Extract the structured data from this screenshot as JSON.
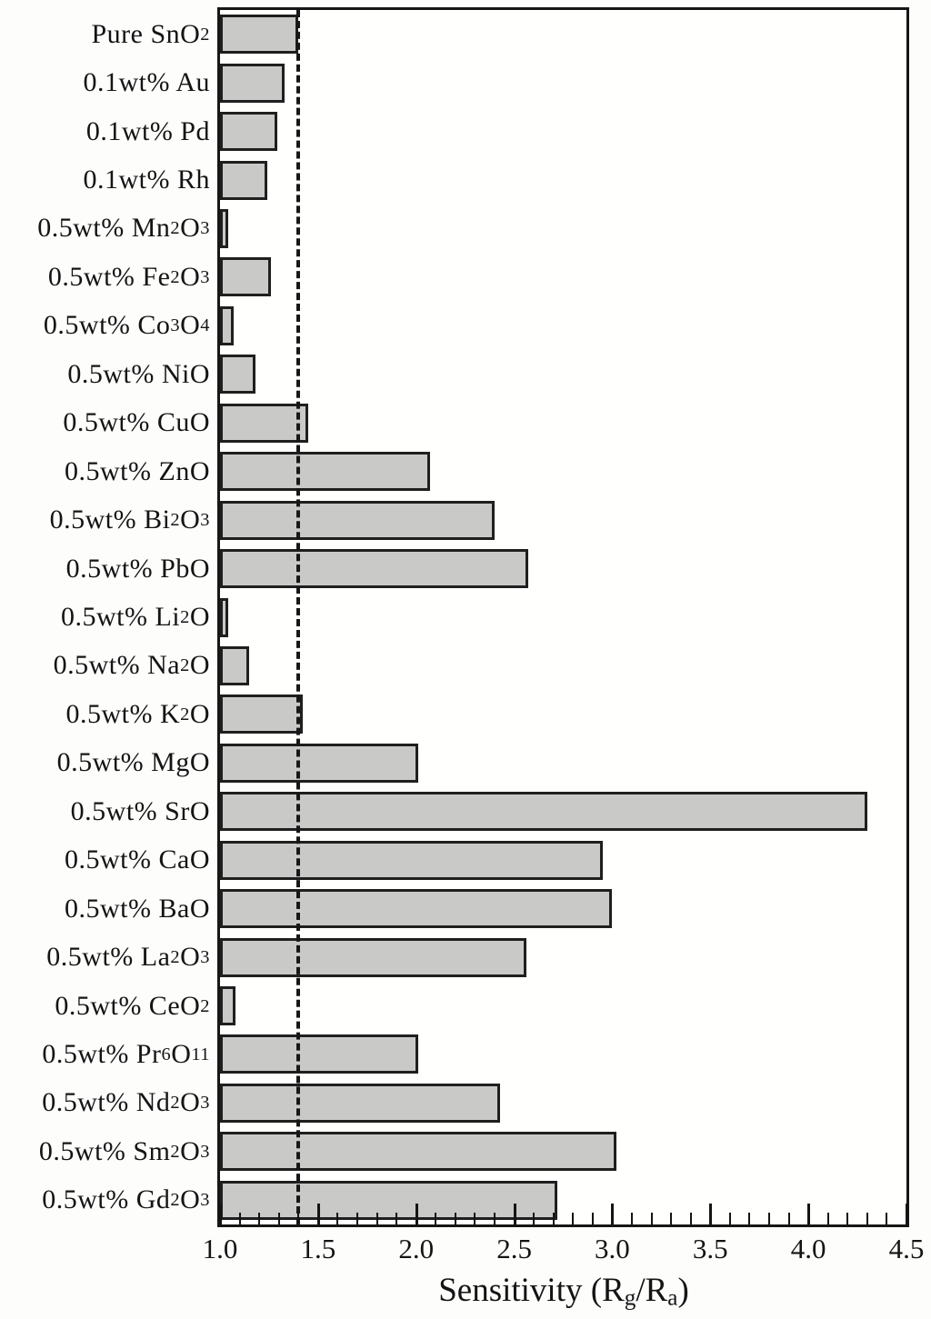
{
  "chart_data": {
    "type": "bar",
    "orientation": "horizontal",
    "xlabel": "Sensitivity (Rg/Ra)",
    "xlabel_segments": [
      "Sensitivity (R",
      "_g",
      "/R",
      "_a",
      ")"
    ],
    "xlim": [
      1.0,
      4.5
    ],
    "x_major_ticks": [
      1.0,
      1.5,
      2.0,
      2.5,
      3.0,
      3.5,
      4.0,
      4.5
    ],
    "x_major_tick_labels": [
      "1.0",
      "1.5",
      "2.0",
      "2.5",
      "3.0",
      "3.5",
      "4.0",
      "4.5"
    ],
    "x_minor_tick_step": 0.1,
    "grid": false,
    "legend": false,
    "reference_line": {
      "value": 1.4,
      "style": "dashed",
      "color": "#171717"
    },
    "bar_color": "#c9cac8",
    "bar_border_color": "#1f1f1f",
    "categories": [
      "Pure SnO2",
      "0.1wt% Au",
      "0.1wt% Pd",
      "0.1wt% Rh",
      "0.5wt% Mn2O3",
      "0.5wt% Fe2O3",
      "0.5wt% Co3O4",
      "0.5wt% NiO",
      "0.5wt% CuO",
      "0.5wt% ZnO",
      "0.5wt% Bi2O3",
      "0.5wt% PbO",
      "0.5wt% Li2O",
      "0.5wt% Na2O",
      "0.5wt% K2O",
      "0.5wt% MgO",
      "0.5wt% SrO",
      "0.5wt% CaO",
      "0.5wt% BaO",
      "0.5wt% La2O3",
      "0.5wt% CeO2",
      "0.5wt% Pr6O11",
      "0.5wt% Nd2O3",
      "0.5wt% Sm2O3",
      "0.5wt% Gd2O3"
    ],
    "category_segments": [
      [
        "Pure SnO",
        "_2"
      ],
      [
        "0.1wt% Au"
      ],
      [
        "0.1wt% Pd"
      ],
      [
        "0.1wt% Rh"
      ],
      [
        "0.5wt% Mn",
        "_2",
        "O",
        "_3"
      ],
      [
        "0.5wt% Fe",
        "_2",
        "O",
        "_3"
      ],
      [
        "0.5wt% Co",
        "_3",
        "O",
        "_4"
      ],
      [
        "0.5wt% NiO"
      ],
      [
        "0.5wt% CuO"
      ],
      [
        "0.5wt% ZnO"
      ],
      [
        "0.5wt% Bi",
        "_2",
        "O",
        "_3"
      ],
      [
        "0.5wt% PbO"
      ],
      [
        "0.5wt% Li",
        "_2",
        "O"
      ],
      [
        "0.5wt% Na",
        "_2",
        "O"
      ],
      [
        "0.5wt% K",
        "_2",
        "O"
      ],
      [
        "0.5wt% MgO"
      ],
      [
        "0.5wt% SrO"
      ],
      [
        "0.5wt% CaO"
      ],
      [
        "0.5wt% BaO"
      ],
      [
        "0.5wt% La",
        "_2",
        "O",
        "_3"
      ],
      [
        "0.5wt% CeO",
        "_2"
      ],
      [
        "0.5wt% Pr",
        "_6",
        "O",
        "_11"
      ],
      [
        "0.5wt% Nd",
        "_2",
        "O",
        "_3"
      ],
      [
        "0.5wt% Sm",
        "_2",
        "O",
        "_3"
      ],
      [
        "0.5wt% Gd",
        "_2",
        "O",
        "_3"
      ]
    ],
    "values": [
      1.4,
      1.33,
      1.29,
      1.24,
      1.04,
      1.26,
      1.07,
      1.18,
      1.45,
      2.07,
      2.4,
      2.57,
      1.04,
      1.15,
      1.42,
      2.01,
      4.3,
      2.95,
      3.0,
      2.56,
      1.08,
      2.01,
      2.43,
      3.02,
      2.72
    ]
  }
}
